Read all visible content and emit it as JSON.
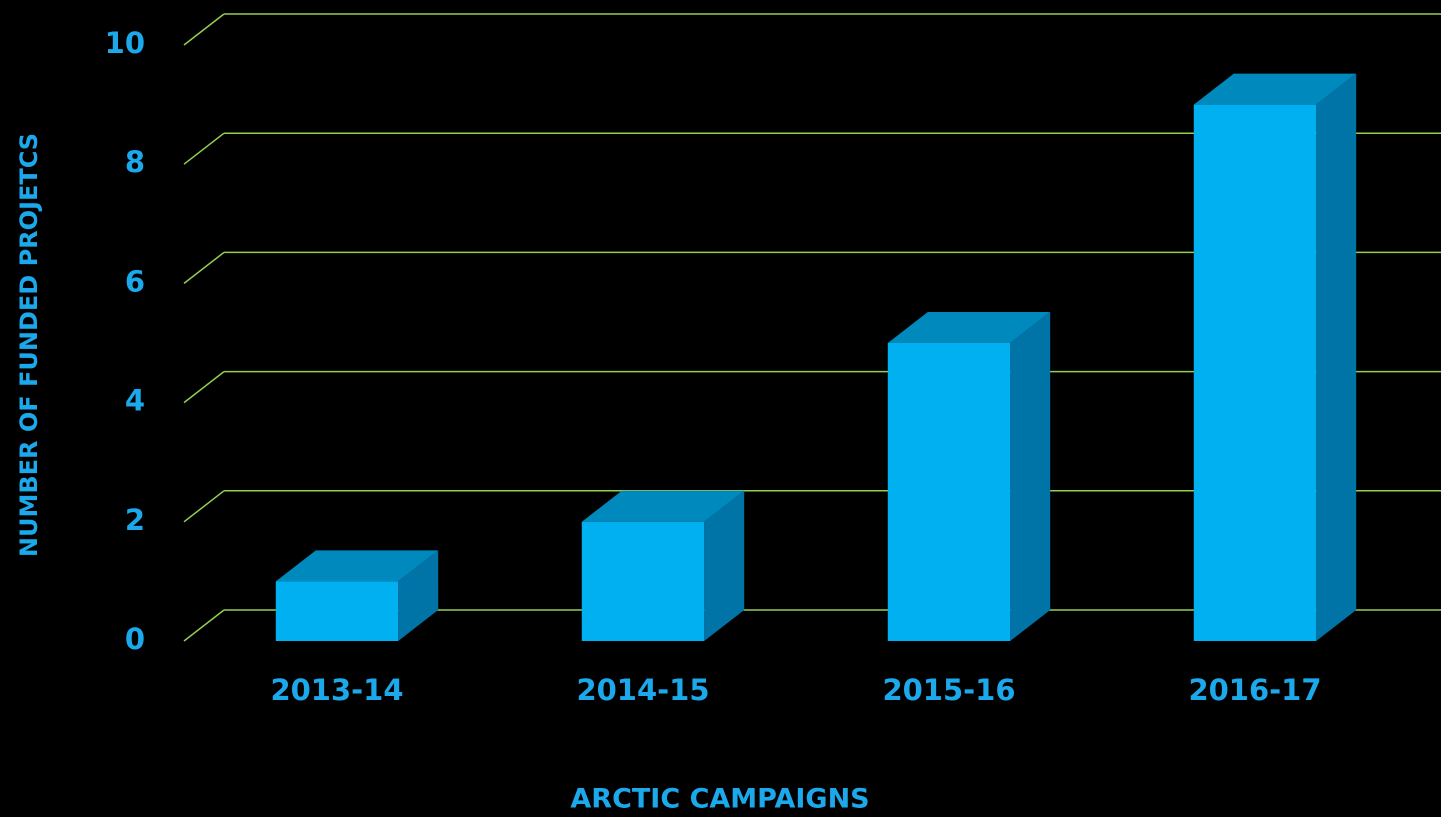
{
  "chart_data": {
    "type": "bar3d",
    "x_label": "ARCTIC CAMPAIGNS",
    "y_label": "NUMBER OF FUNDED PROJETCS",
    "categories": [
      "2013-14",
      "2014-15",
      "2015-16",
      "2016-17"
    ],
    "values": [
      1,
      2,
      5,
      9
    ],
    "color": "#00b0f0",
    "ylim": [
      0,
      10
    ],
    "yticks": [
      0,
      2,
      4,
      6,
      8,
      10
    ],
    "grid": true,
    "grid_color": "#92d050"
  }
}
